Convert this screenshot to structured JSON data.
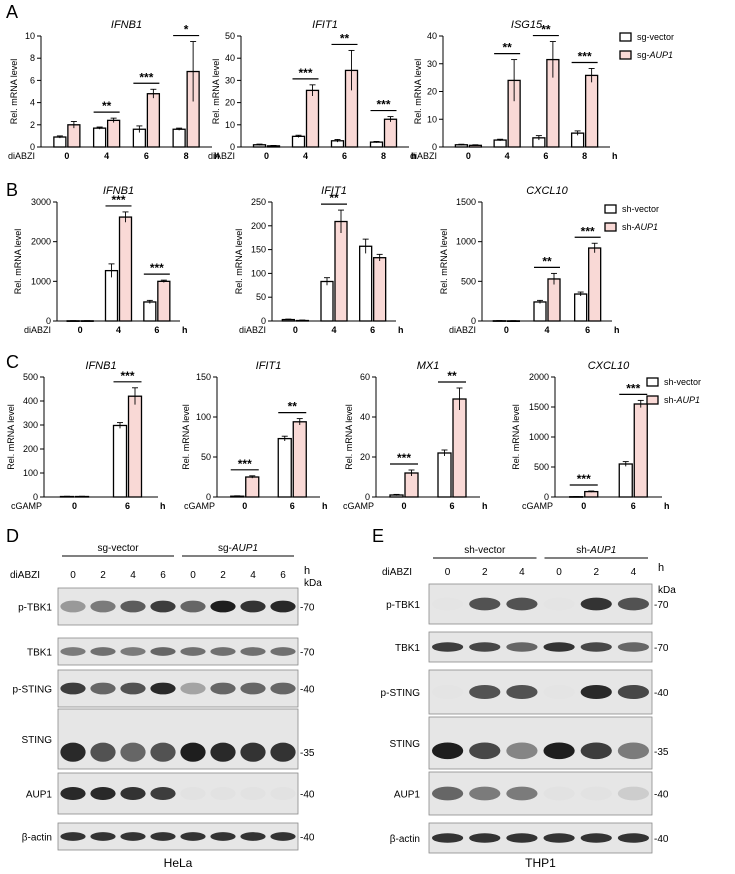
{
  "panels": {
    "A": {
      "letter": "A",
      "treatment": "diABZI",
      "unit": "h",
      "legend": [
        {
          "name": "sg-vector",
          "style": "white"
        },
        {
          "name": "sg-",
          "italic": "AUP1",
          "style": "pink"
        }
      ],
      "charts": [
        {
          "title": "IFNB1",
          "ylabel": "Rel. mRNA level",
          "yticks": [
            0,
            2,
            4,
            6,
            8,
            10
          ],
          "ymax": 10,
          "groups": [
            "0",
            "4",
            "6",
            "8"
          ],
          "control": [
            0.9,
            1.7,
            1.6,
            1.6
          ],
          "control_err": [
            0.1,
            0.1,
            0.3,
            0.1
          ],
          "treated": [
            2.0,
            2.4,
            4.8,
            6.8
          ],
          "treated_err": [
            0.3,
            0.2,
            0.4,
            2.7
          ],
          "sig": [
            null,
            "**",
            "***",
            "*"
          ]
        },
        {
          "title": "IFIT1",
          "ylabel": "Rel. mRNA level",
          "yticks": [
            0,
            10,
            20,
            30,
            40,
            50
          ],
          "ymax": 50,
          "groups": [
            "0",
            "4",
            "6",
            "8"
          ],
          "control": [
            1.0,
            4.8,
            2.8,
            2.2
          ],
          "control_err": [
            0.3,
            0.5,
            0.6,
            0.3
          ],
          "treated": [
            0.5,
            25.5,
            34.5,
            12.5
          ],
          "treated_err": [
            0.2,
            2.5,
            9.0,
            1.2
          ],
          "sig": [
            null,
            "***",
            "**",
            "***"
          ]
        },
        {
          "title": "ISG15",
          "ylabel": "Rel. mRNA level",
          "yticks": [
            0,
            10,
            20,
            30,
            40
          ],
          "ymax": 40,
          "groups": [
            "0",
            "4",
            "6",
            "8"
          ],
          "control": [
            0.8,
            2.5,
            3.3,
            5.0
          ],
          "control_err": [
            0.2,
            0.3,
            0.8,
            0.8
          ],
          "treated": [
            0.6,
            24.0,
            31.5,
            25.8
          ],
          "treated_err": [
            0.2,
            7.5,
            6.5,
            2.5
          ],
          "sig": [
            null,
            "**",
            "**",
            "***"
          ]
        }
      ]
    },
    "B": {
      "letter": "B",
      "treatment": "diABZI",
      "unit": "h",
      "legend": [
        {
          "name": "sh-vector",
          "style": "white"
        },
        {
          "name": "sh-",
          "italic": "AUP1",
          "style": "pink"
        }
      ],
      "charts": [
        {
          "title": "IFNB1",
          "ylabel": "Rel. mRNA level",
          "yticks": [
            0,
            1000,
            2000,
            3000
          ],
          "ymax": 3000,
          "groups": [
            "0",
            "4",
            "6"
          ],
          "control": [
            5,
            1270,
            480
          ],
          "control_err": [
            3,
            170,
            40
          ],
          "treated": [
            5,
            2620,
            1000
          ],
          "treated_err": [
            3,
            130,
            30
          ],
          "sig": [
            null,
            "***",
            "***"
          ]
        },
        {
          "title": "IFIT1",
          "ylabel": "Rel. mRNA level",
          "yticks": [
            0,
            50,
            100,
            150,
            200,
            250
          ],
          "ymax": 250,
          "groups": [
            "0",
            "4",
            "6"
          ],
          "control": [
            3,
            83,
            157
          ],
          "control_err": [
            1,
            8,
            15
          ],
          "treated": [
            1,
            209,
            133
          ],
          "treated_err": [
            1,
            24,
            7
          ],
          "sig": [
            null,
            "**",
            null
          ]
        },
        {
          "title": "CXCL10",
          "ylabel": "Rel. mRNA level",
          "yticks": [
            0,
            500,
            1000,
            1500
          ],
          "ymax": 1500,
          "groups": [
            "0",
            "4",
            "6"
          ],
          "control": [
            3,
            240,
            340
          ],
          "control_err": [
            2,
            20,
            25
          ],
          "treated": [
            2,
            530,
            920
          ],
          "treated_err": [
            2,
            70,
            60
          ],
          "sig": [
            null,
            "**",
            "***"
          ]
        }
      ]
    },
    "C": {
      "letter": "C",
      "treatment": "cGAMP",
      "unit": "h",
      "legend": [
        {
          "name": "sh-vector",
          "style": "white"
        },
        {
          "name": "sh-",
          "italic": "AUP1",
          "style": "pink"
        }
      ],
      "charts": [
        {
          "title": "IFNB1",
          "ylabel": "Rel. mRNA level",
          "yticks": [
            0,
            100,
            200,
            300,
            400,
            500
          ],
          "ymax": 500,
          "groups": [
            "0",
            "6"
          ],
          "control": [
            2,
            298
          ],
          "control_err": [
            1,
            12
          ],
          "treated": [
            2,
            420
          ],
          "treated_err": [
            1,
            35
          ],
          "sig": [
            null,
            "***"
          ]
        },
        {
          "title": "IFIT1",
          "ylabel": "Rel. mRNA level",
          "yticks": [
            0,
            50,
            100,
            150
          ],
          "ymax": 150,
          "groups": [
            "0",
            "6"
          ],
          "control": [
            1,
            73
          ],
          "control_err": [
            0.5,
            3
          ],
          "treated": [
            25,
            94
          ],
          "treated_err": [
            1.5,
            4
          ],
          "sig": [
            "***",
            "**"
          ]
        },
        {
          "title": "MX1",
          "ylabel": "Rel. mRNA level",
          "yticks": [
            0,
            20,
            40,
            60
          ],
          "ymax": 60,
          "groups": [
            "0",
            "6"
          ],
          "control": [
            1,
            22
          ],
          "control_err": [
            0.3,
            1.5
          ],
          "treated": [
            12,
            49
          ],
          "treated_err": [
            1.5,
            5.5
          ],
          "sig": [
            "***",
            "**"
          ]
        },
        {
          "title": "CXCL10",
          "ylabel": "Rel. mRNA level",
          "yticks": [
            0,
            500,
            1000,
            1500,
            2000
          ],
          "ymax": 2000,
          "groups": [
            "0",
            "6"
          ],
          "control": [
            5,
            550
          ],
          "control_err": [
            3,
            40
          ],
          "treated": [
            90,
            1550
          ],
          "treated_err": [
            10,
            60
          ],
          "sig": [
            "***",
            "***"
          ]
        }
      ]
    },
    "D": {
      "letter": "D",
      "cell_line": "HeLa",
      "treatment": "diABZI",
      "unit": "h",
      "kda": "kDa",
      "groups": [
        {
          "name": "sg-vector"
        },
        {
          "name": "sg-",
          "italic": "AUP1"
        }
      ],
      "timepoints": [
        "0",
        "2",
        "4",
        "6",
        "0",
        "2",
        "4",
        "6"
      ],
      "blots": [
        {
          "label": "p-TBK1",
          "marker": "70",
          "band_intensity": [
            0.35,
            0.5,
            0.65,
            0.8,
            0.6,
            0.95,
            0.85,
            0.9
          ]
        },
        {
          "label": "TBK1",
          "marker": "70",
          "band_intensity": [
            0.5,
            0.55,
            0.5,
            0.6,
            0.55,
            0.55,
            0.55,
            0.55
          ]
        },
        {
          "label": "p-STING",
          "marker": "40",
          "band_intensity": [
            0.8,
            0.6,
            0.7,
            0.9,
            0.3,
            0.6,
            0.6,
            0.6
          ]
        },
        {
          "label": "STING",
          "marker": "35",
          "band_intensity": [
            0.9,
            0.7,
            0.6,
            0.7,
            0.95,
            0.9,
            0.85,
            0.85
          ]
        },
        {
          "label": "AUP1",
          "marker": "40",
          "band_intensity": [
            0.9,
            0.9,
            0.85,
            0.8,
            0.05,
            0.05,
            0.05,
            0.05
          ]
        },
        {
          "label": "β-actin",
          "marker": "40",
          "band_intensity": [
            0.85,
            0.85,
            0.85,
            0.85,
            0.85,
            0.85,
            0.85,
            0.85
          ]
        }
      ]
    },
    "E": {
      "letter": "E",
      "cell_line": "THP1",
      "treatment": "diABZI",
      "unit": "h",
      "kda": "kDa",
      "groups": [
        {
          "name": "sh-vector"
        },
        {
          "name": "sh-",
          "italic": "AUP1"
        }
      ],
      "timepoints": [
        "0",
        "2",
        "4",
        "0",
        "2",
        "4"
      ],
      "blots": [
        {
          "label": "p-TBK1",
          "marker": "70",
          "band_intensity": [
            0.0,
            0.7,
            0.7,
            0.0,
            0.85,
            0.7
          ]
        },
        {
          "label": "TBK1",
          "marker": "70",
          "band_intensity": [
            0.8,
            0.75,
            0.6,
            0.85,
            0.75,
            0.6
          ]
        },
        {
          "label": "p-STING",
          "marker": "40",
          "band_intensity": [
            0.0,
            0.7,
            0.7,
            0.0,
            0.9,
            0.75
          ]
        },
        {
          "label": "STING",
          "marker": "35",
          "band_intensity": [
            0.95,
            0.75,
            0.45,
            0.95,
            0.8,
            0.5
          ]
        },
        {
          "label": "AUP1",
          "marker": "40",
          "band_intensity": [
            0.6,
            0.5,
            0.5,
            0.05,
            0.05,
            0.1
          ]
        },
        {
          "label": "β-actin",
          "marker": "40",
          "band_intensity": [
            0.85,
            0.85,
            0.85,
            0.85,
            0.85,
            0.85
          ]
        }
      ]
    }
  },
  "colors": {
    "control": "#ffffff",
    "treated": "#f9d9d6",
    "stroke": "#000000"
  }
}
